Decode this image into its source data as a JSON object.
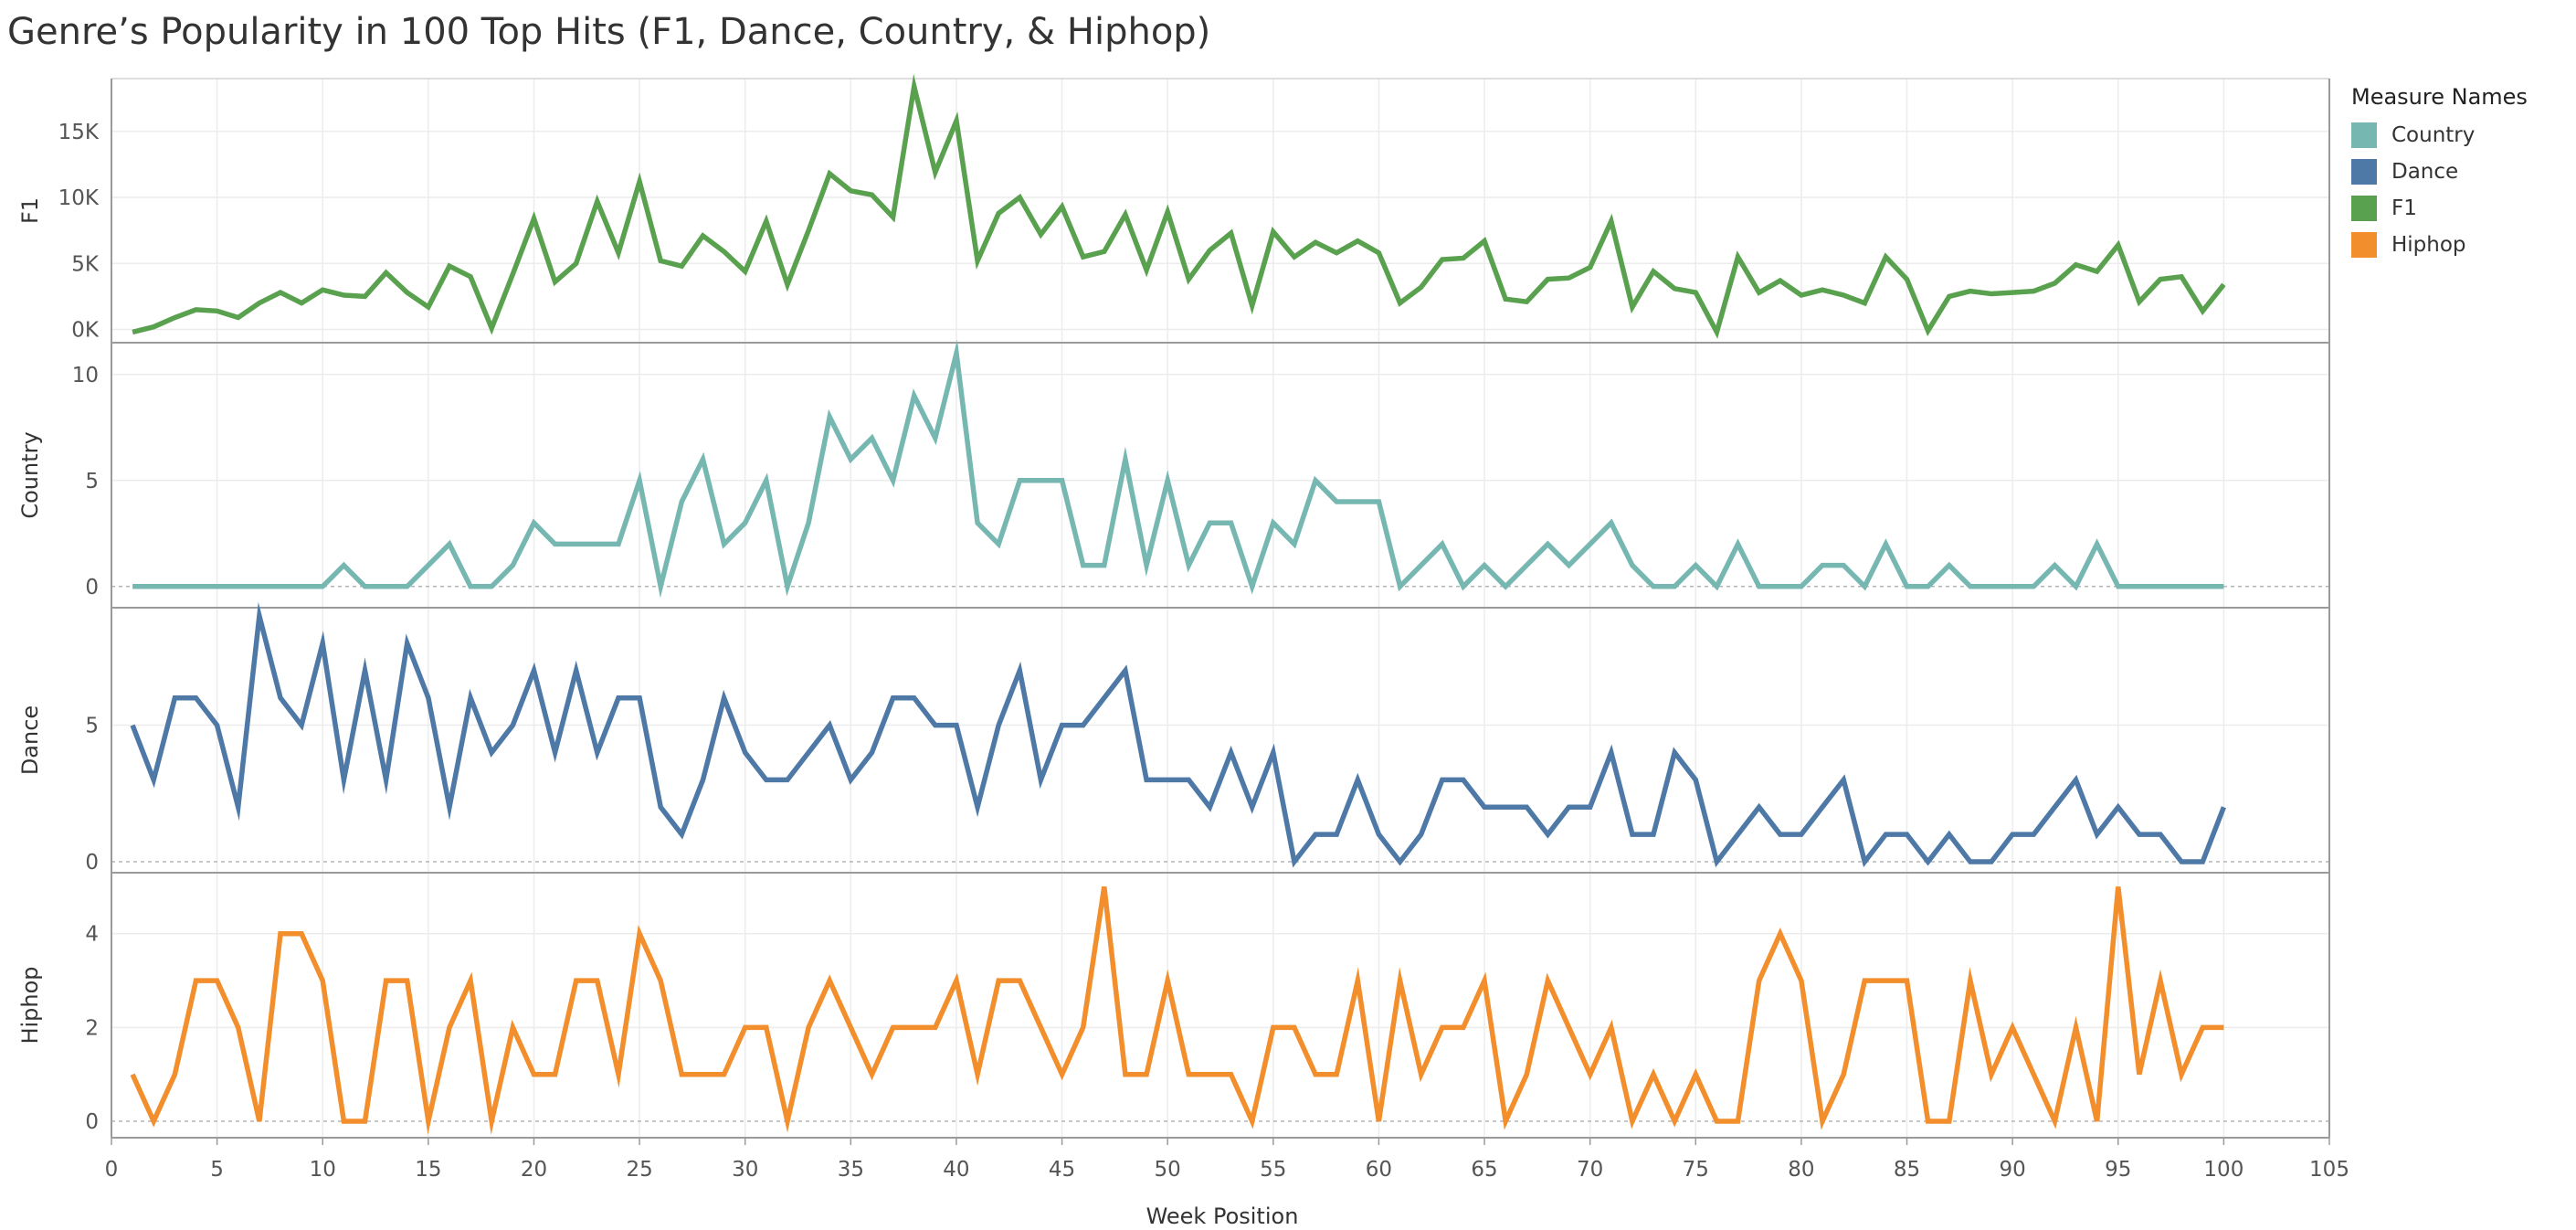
{
  "title": "Genre’s Popularity in 100 Top Hits (F1, Dance, Country, & Hiphop)",
  "legend": {
    "title": "Measure Names",
    "items": [
      {
        "label": "Country",
        "color": "#76b7b2"
      },
      {
        "label": "Dance",
        "color": "#4e79a7"
      },
      {
        "label": "F1",
        "color": "#59a14f"
      },
      {
        "label": "Hiphop",
        "color": "#f28e2b"
      }
    ]
  },
  "chart_data": {
    "type": "line",
    "xlabel": "Week Position",
    "xlim": [
      0,
      105
    ],
    "xticks": [
      0,
      5,
      10,
      15,
      20,
      25,
      30,
      35,
      40,
      45,
      50,
      55,
      60,
      65,
      70,
      75,
      80,
      85,
      90,
      95,
      100,
      105
    ],
    "x": [
      1,
      2,
      3,
      4,
      5,
      6,
      7,
      8,
      9,
      10,
      11,
      12,
      13,
      14,
      15,
      16,
      17,
      18,
      19,
      20,
      21,
      22,
      23,
      24,
      25,
      26,
      27,
      28,
      29,
      30,
      31,
      32,
      33,
      34,
      35,
      36,
      37,
      38,
      39,
      40,
      41,
      42,
      43,
      44,
      45,
      46,
      47,
      48,
      49,
      50,
      51,
      52,
      53,
      54,
      55,
      56,
      57,
      58,
      59,
      60,
      61,
      62,
      63,
      64,
      65,
      66,
      67,
      68,
      69,
      70,
      71,
      72,
      73,
      74,
      75,
      76,
      77,
      78,
      79,
      80,
      81,
      82,
      83,
      84,
      85,
      86,
      87,
      88,
      89,
      90,
      91,
      92,
      93,
      94,
      95,
      96,
      97,
      98,
      99,
      100
    ],
    "series": [
      {
        "name": "F1",
        "ylabel": "F1",
        "color": "#59a14f",
        "ylim": [
          -1000,
          19000
        ],
        "yticks": [
          {
            "v": 0,
            "label": "0K"
          },
          {
            "v": 5000,
            "label": "5K"
          },
          {
            "v": 10000,
            "label": "10K"
          },
          {
            "v": 15000,
            "label": "15K"
          }
        ],
        "values": [
          -200,
          200,
          900,
          1500,
          1400,
          900,
          2000,
          2800,
          2000,
          3000,
          2600,
          2500,
          4300,
          2800,
          1700,
          4800,
          4000,
          100,
          4200,
          8400,
          3600,
          5000,
          9700,
          5800,
          11200,
          5200,
          4800,
          7100,
          5900,
          4400,
          8200,
          3400,
          7500,
          11800,
          10500,
          10200,
          8500,
          18400,
          11900,
          15800,
          5200,
          8800,
          10000,
          7200,
          9300,
          5500,
          5900,
          8700,
          4500,
          8900,
          3800,
          6000,
          7300,
          1800,
          7400,
          5500,
          6600,
          5800,
          6700,
          5800,
          2000,
          3200,
          5300,
          5400,
          6700,
          2300,
          2100,
          3800,
          3900,
          4700,
          8200,
          1700,
          4400,
          3100,
          2800,
          -200,
          5500,
          2800,
          3700,
          2600,
          3000,
          2600,
          2000,
          5500,
          3800,
          -100,
          2500,
          2900,
          2700,
          2800,
          2900,
          3500,
          4900,
          4400,
          6400,
          2100,
          3800,
          4000,
          1400,
          3400
        ]
      },
      {
        "name": "Country",
        "ylabel": "Country",
        "color": "#76b7b2",
        "ylim": [
          -1,
          11.5
        ],
        "yticks": [
          {
            "v": 0,
            "label": "0"
          },
          {
            "v": 5,
            "label": "5"
          },
          {
            "v": 10,
            "label": "10"
          }
        ],
        "values": [
          0,
          0,
          0,
          0,
          0,
          0,
          0,
          0,
          0,
          0,
          1,
          0,
          0,
          0,
          1,
          2,
          0,
          0,
          1,
          3,
          2,
          2,
          2,
          2,
          5,
          0,
          4,
          6,
          2,
          3,
          5,
          0,
          3,
          8,
          6,
          7,
          5,
          9,
          7,
          11,
          3,
          2,
          5,
          5,
          5,
          1,
          1,
          6,
          1,
          5,
          1,
          3,
          3,
          0,
          3,
          2,
          5,
          4,
          4,
          4,
          0,
          1,
          2,
          0,
          1,
          0,
          1,
          2,
          1,
          2,
          3,
          1,
          0,
          0,
          1,
          0,
          2,
          0,
          0,
          0,
          1,
          1,
          0,
          2,
          0,
          0,
          1,
          0,
          0,
          0,
          0,
          1,
          0,
          2,
          0,
          0,
          0,
          0,
          0,
          0
        ]
      },
      {
        "name": "Dance",
        "ylabel": "Dance",
        "color": "#4e79a7",
        "ylim": [
          -0.4,
          9.3
        ],
        "yticks": [
          {
            "v": 0,
            "label": "0"
          },
          {
            "v": 5,
            "label": "5"
          }
        ],
        "values": [
          5,
          3,
          6,
          6,
          5,
          2,
          9,
          6,
          5,
          8,
          3,
          7,
          3,
          8,
          6,
          2,
          6,
          4,
          5,
          7,
          4,
          7,
          4,
          6,
          6,
          2,
          1,
          3,
          6,
          4,
          3,
          3,
          4,
          5,
          3,
          4,
          6,
          6,
          5,
          5,
          2,
          5,
          7,
          3,
          5,
          5,
          6,
          7,
          3,
          3,
          3,
          2,
          4,
          2,
          4,
          0,
          1,
          1,
          3,
          1,
          0,
          1,
          3,
          3,
          2,
          2,
          2,
          1,
          2,
          2,
          4,
          1,
          1,
          4,
          3,
          0,
          1,
          2,
          1,
          1,
          2,
          3,
          0,
          1,
          1,
          0,
          1,
          0,
          0,
          1,
          1,
          2,
          3,
          1,
          2,
          1,
          1,
          0,
          0,
          2
        ]
      },
      {
        "name": "Hiphop",
        "ylabel": "Hiphop",
        "color": "#f28e2b",
        "ylim": [
          -0.35,
          5.3
        ],
        "yticks": [
          {
            "v": 0,
            "label": "0"
          },
          {
            "v": 2,
            "label": "2"
          },
          {
            "v": 4,
            "label": "4"
          }
        ],
        "values": [
          1,
          0,
          1,
          3,
          3,
          2,
          0,
          4,
          4,
          3,
          0,
          0,
          3,
          3,
          0,
          2,
          3,
          0,
          2,
          1,
          1,
          3,
          3,
          1,
          4,
          3,
          1,
          1,
          1,
          2,
          2,
          0,
          2,
          3,
          2,
          1,
          2,
          2,
          2,
          3,
          1,
          3,
          3,
          2,
          1,
          2,
          5,
          1,
          1,
          3,
          1,
          1,
          1,
          0,
          2,
          2,
          1,
          1,
          3,
          0,
          3,
          1,
          2,
          2,
          3,
          0,
          1,
          3,
          2,
          1,
          2,
          0,
          1,
          0,
          1,
          0,
          0,
          3,
          4,
          3,
          0,
          1,
          3,
          3,
          3,
          0,
          0,
          3,
          1,
          2,
          1,
          0,
          2,
          0,
          5,
          1,
          3,
          1,
          2,
          2
        ]
      }
    ]
  }
}
